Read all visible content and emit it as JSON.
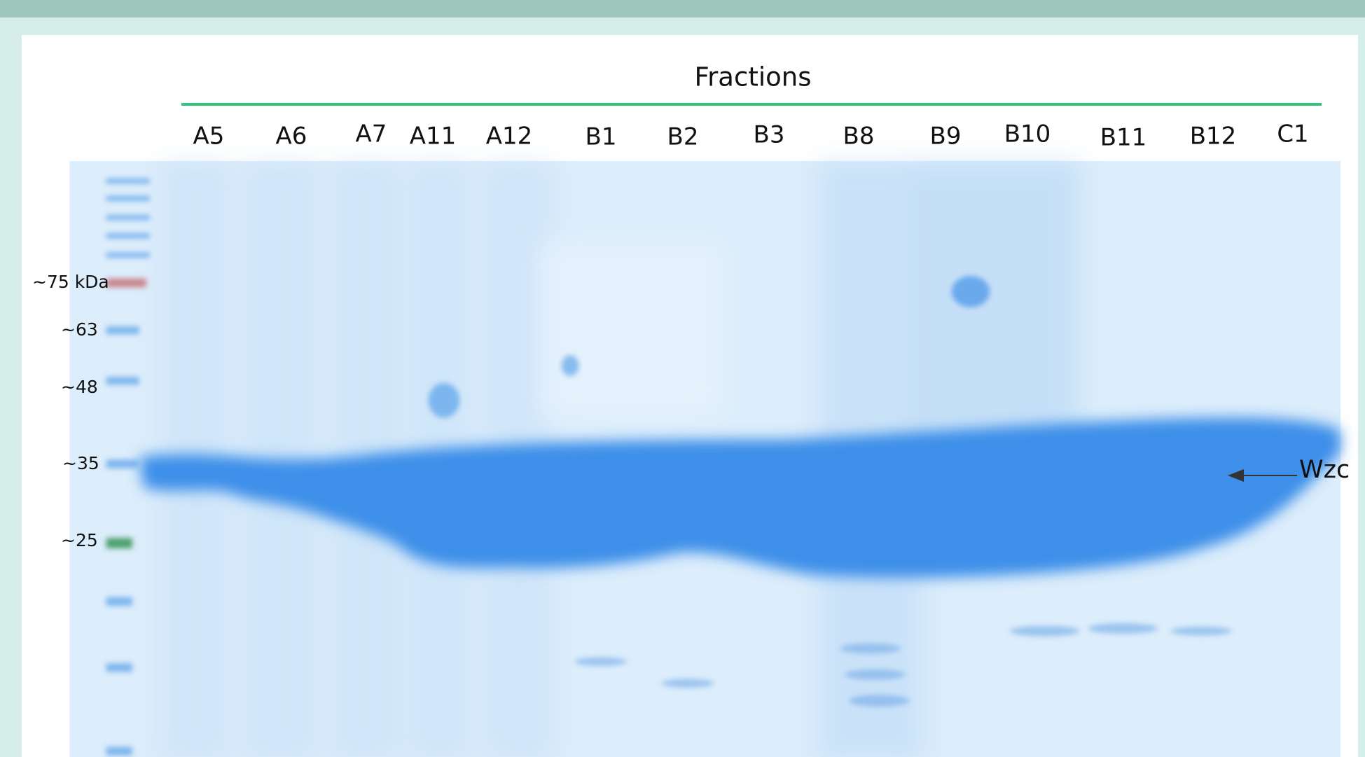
{
  "header": {
    "title": "Fractions"
  },
  "lanes": [
    "A5",
    "A6",
    "A7",
    "A11",
    "A12",
    "B1",
    "B2",
    "B3",
    "B8",
    "B9",
    "B10",
    "B11",
    "B12",
    "C1"
  ],
  "markers": [
    "~75 kDa",
    "~63",
    "~48",
    "~35",
    "~25"
  ],
  "annotation": "Wzc"
}
